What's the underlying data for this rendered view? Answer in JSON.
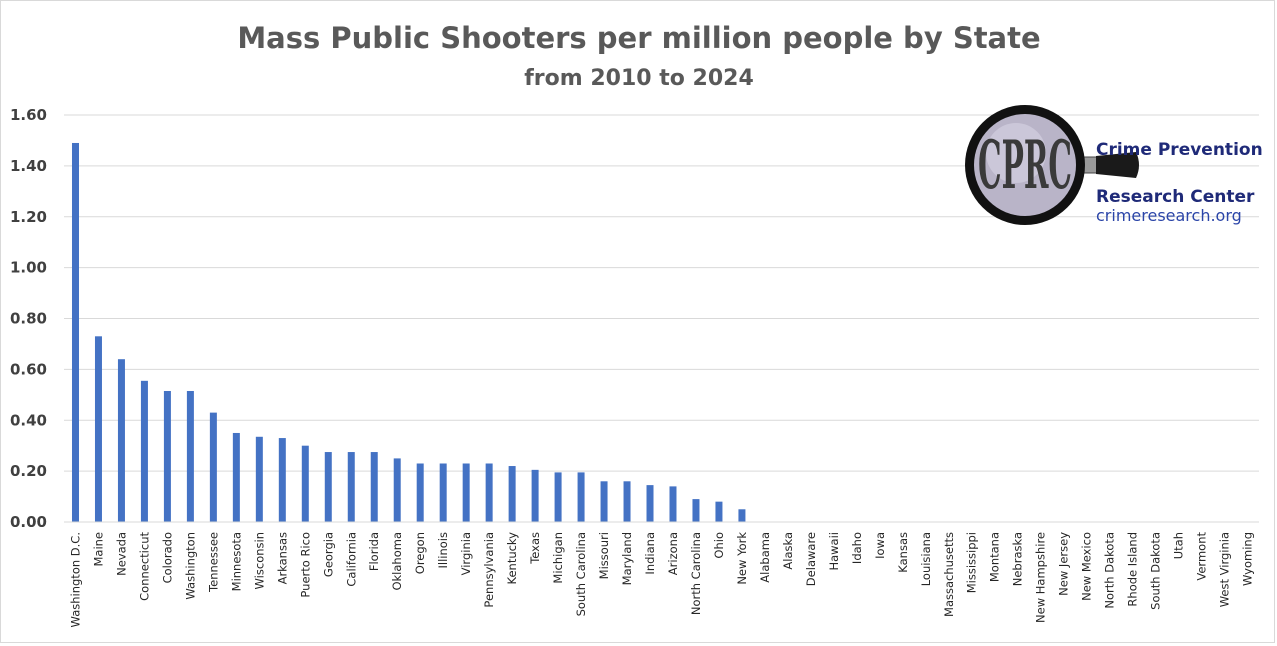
{
  "chart_data": {
    "type": "bar",
    "title": "Mass Public Shooters per million people by State",
    "subtitle": "from 2010 to 2024",
    "xlabel": "",
    "ylabel": "",
    "ylim": [
      0,
      1.6
    ],
    "yticks": [
      "0.00",
      "0.20",
      "0.40",
      "0.60",
      "0.80",
      "1.00",
      "1.20",
      "1.40",
      "1.60"
    ],
    "ytick_values": [
      0,
      0.2,
      0.4,
      0.6,
      0.8,
      1.0,
      1.2,
      1.4,
      1.6
    ],
    "grid": true,
    "bar_color": "#4472c4",
    "categories": [
      "Washington D.C.",
      "Maine",
      "Nevada",
      "Connecticut",
      "Colorado",
      "Washington",
      "Tennessee",
      "Minnesota",
      "Wisconsin",
      "Arkansas",
      "Puerto Rico",
      "Georgia",
      "California",
      "Florida",
      "Oklahoma",
      "Oregon",
      "Illinois",
      "Virginia",
      "Pennsylvania",
      "Kentucky",
      "Texas",
      "Michigan",
      "South Carolina",
      "Missouri",
      "Maryland",
      "Indiana",
      "Arizona",
      "North Carolina",
      "Ohio",
      "New York",
      "Alabama",
      "Alaska",
      "Delaware",
      "Hawaii",
      "Idaho",
      "Iowa",
      "Kansas",
      "Louisiana",
      "Massachusetts",
      "Mississippi",
      "Montana",
      "Nebraska",
      "New Hampshire",
      "New Jersey",
      "New Mexico",
      "North Dakota",
      "Rhode Island",
      "South Dakota",
      "Utah",
      "Vermont",
      "West Virginia",
      "Wyoming"
    ],
    "values": [
      1.49,
      0.73,
      0.64,
      0.555,
      0.515,
      0.515,
      0.43,
      0.35,
      0.335,
      0.33,
      0.3,
      0.275,
      0.275,
      0.275,
      0.25,
      0.23,
      0.23,
      0.23,
      0.23,
      0.22,
      0.205,
      0.195,
      0.195,
      0.16,
      0.16,
      0.145,
      0.14,
      0.09,
      0.08,
      0.05,
      0,
      0,
      0,
      0,
      0,
      0,
      0,
      0,
      0,
      0,
      0,
      0,
      0,
      0,
      0,
      0,
      0,
      0,
      0,
      0,
      0,
      0
    ]
  },
  "logo": {
    "letters": "CPRC",
    "name_line1": "Crime Prevention",
    "name_line2": "Research Center",
    "website": "crimeresearch.org"
  }
}
